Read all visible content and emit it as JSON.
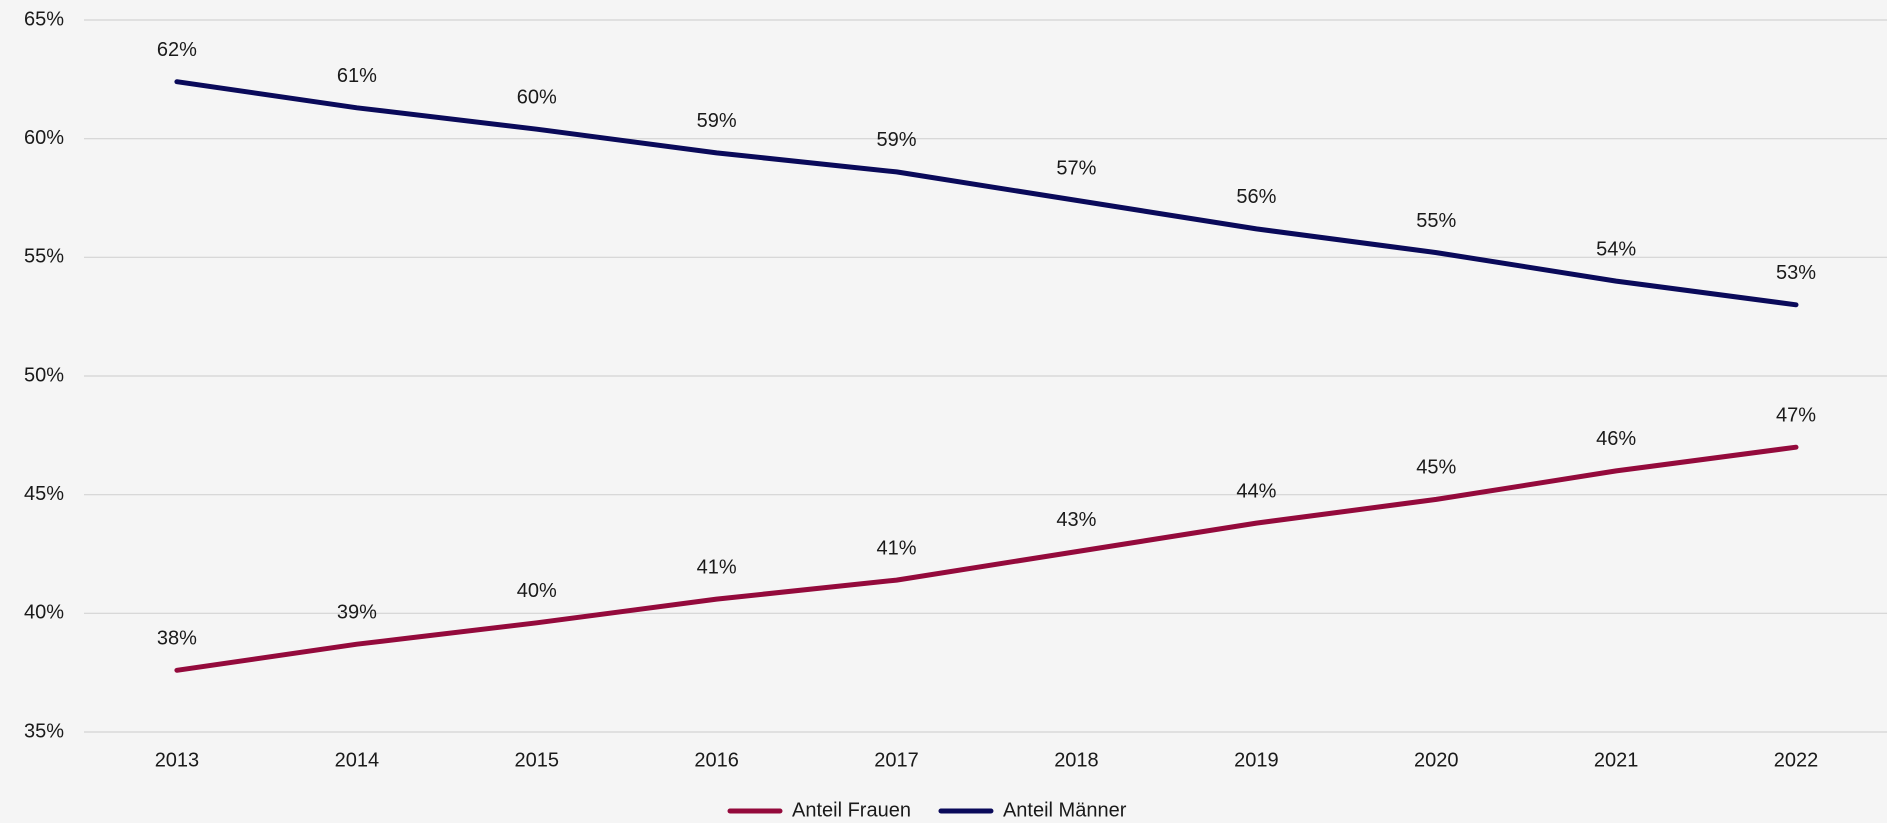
{
  "chart_data": {
    "type": "line",
    "categories": [
      "2013",
      "2014",
      "2015",
      "2016",
      "2017",
      "2018",
      "2019",
      "2020",
      "2021",
      "2022"
    ],
    "series": [
      {
        "name": "Anteil Frauen",
        "color": "#940a3c",
        "values": [
          37.6,
          38.7,
          39.6,
          40.6,
          41.4,
          42.6,
          43.8,
          44.8,
          46.0,
          47.0
        ],
        "value_labels": [
          "38%",
          "39%",
          "40%",
          "41%",
          "41%",
          "43%",
          "44%",
          "45%",
          "46%",
          "47%"
        ]
      },
      {
        "name": "Anteil Männer",
        "color": "#0a0a5a",
        "values": [
          62.4,
          61.3,
          60.4,
          59.4,
          58.6,
          57.4,
          56.2,
          55.2,
          54.0,
          53.0
        ],
        "value_labels": [
          "62%",
          "61%",
          "60%",
          "59%",
          "59%",
          "57%",
          "56%",
          "55%",
          "54%",
          "53%"
        ]
      }
    ],
    "ylim": [
      35,
      65
    ],
    "yticks": [
      {
        "value": 35,
        "label": "35%"
      },
      {
        "value": 40,
        "label": "40%"
      },
      {
        "value": 45,
        "label": "45%"
      },
      {
        "value": 50,
        "label": "50%"
      },
      {
        "value": 55,
        "label": "55%"
      },
      {
        "value": 60,
        "label": "60%"
      },
      {
        "value": 65,
        "label": "65%"
      }
    ],
    "grid": true,
    "legend": "bottom"
  }
}
